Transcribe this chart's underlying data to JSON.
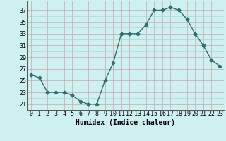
{
  "x": [
    0,
    1,
    2,
    3,
    4,
    5,
    6,
    7,
    8,
    9,
    10,
    11,
    12,
    13,
    14,
    15,
    16,
    17,
    18,
    19,
    20,
    21,
    22,
    23
  ],
  "y": [
    26,
    25.5,
    23,
    23,
    23,
    22.5,
    21.5,
    21,
    21,
    25,
    28,
    33,
    33,
    33,
    34.5,
    37,
    37,
    37.5,
    37,
    35.5,
    33,
    31,
    28.5,
    27.5
  ],
  "line_color": "#2d6e6e",
  "marker": "D",
  "marker_size": 2.5,
  "bg_color": "#cff0f0",
  "grid_color_minor": "#a8d8d8",
  "grid_color_major": "#c8a8a8",
  "xlabel": "Humidex (Indice chaleur)",
  "ylabel_ticks": [
    21,
    23,
    25,
    27,
    29,
    31,
    33,
    35,
    37
  ],
  "ylim": [
    20.0,
    38.5
  ],
  "xlim": [
    -0.5,
    23.5
  ],
  "axis_fontsize": 6,
  "label_fontsize": 7
}
